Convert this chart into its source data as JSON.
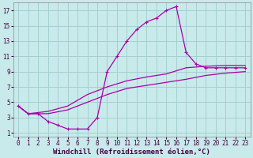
{
  "xlabel": "Windchill (Refroidissement éolien,°C)",
  "bg_color": "#c8eaea",
  "grid_color": "#a0cccc",
  "line_color": "#aa00aa",
  "xlim": [
    -0.5,
    23.5
  ],
  "ylim": [
    0.5,
    18.0
  ],
  "xticks": [
    0,
    1,
    2,
    3,
    4,
    5,
    6,
    7,
    8,
    9,
    10,
    11,
    12,
    13,
    14,
    15,
    16,
    17,
    18,
    19,
    20,
    21,
    22,
    23
  ],
  "yticks": [
    1,
    3,
    5,
    7,
    9,
    11,
    13,
    15,
    17
  ],
  "main_x": [
    0,
    1,
    2,
    3,
    4,
    5,
    6,
    7,
    8,
    9,
    10,
    11,
    12,
    13,
    14,
    15,
    16,
    17,
    18,
    19,
    20,
    21,
    22,
    23
  ],
  "main_y": [
    4.5,
    3.5,
    3.5,
    2.5,
    2.0,
    1.5,
    1.5,
    1.5,
    3.0,
    9.0,
    11.0,
    13.0,
    14.5,
    15.5,
    16.0,
    17.0,
    17.5,
    11.5,
    10.0,
    9.5,
    9.5,
    9.5,
    9.5,
    9.5
  ],
  "upper_x": [
    0,
    1,
    3,
    5,
    7,
    9,
    11,
    13,
    15,
    17,
    19,
    21,
    23
  ],
  "upper_y": [
    4.5,
    3.5,
    3.8,
    4.5,
    6.0,
    7.0,
    7.8,
    8.3,
    8.7,
    9.5,
    9.7,
    9.8,
    9.8
  ],
  "lower_x": [
    0,
    1,
    3,
    5,
    7,
    9,
    11,
    13,
    15,
    17,
    19,
    21,
    23
  ],
  "lower_y": [
    4.5,
    3.5,
    3.5,
    4.0,
    5.0,
    6.0,
    6.8,
    7.2,
    7.6,
    8.0,
    8.5,
    8.8,
    9.0
  ],
  "tickfont_size": 5.5,
  "labelfont_size": 6.5
}
